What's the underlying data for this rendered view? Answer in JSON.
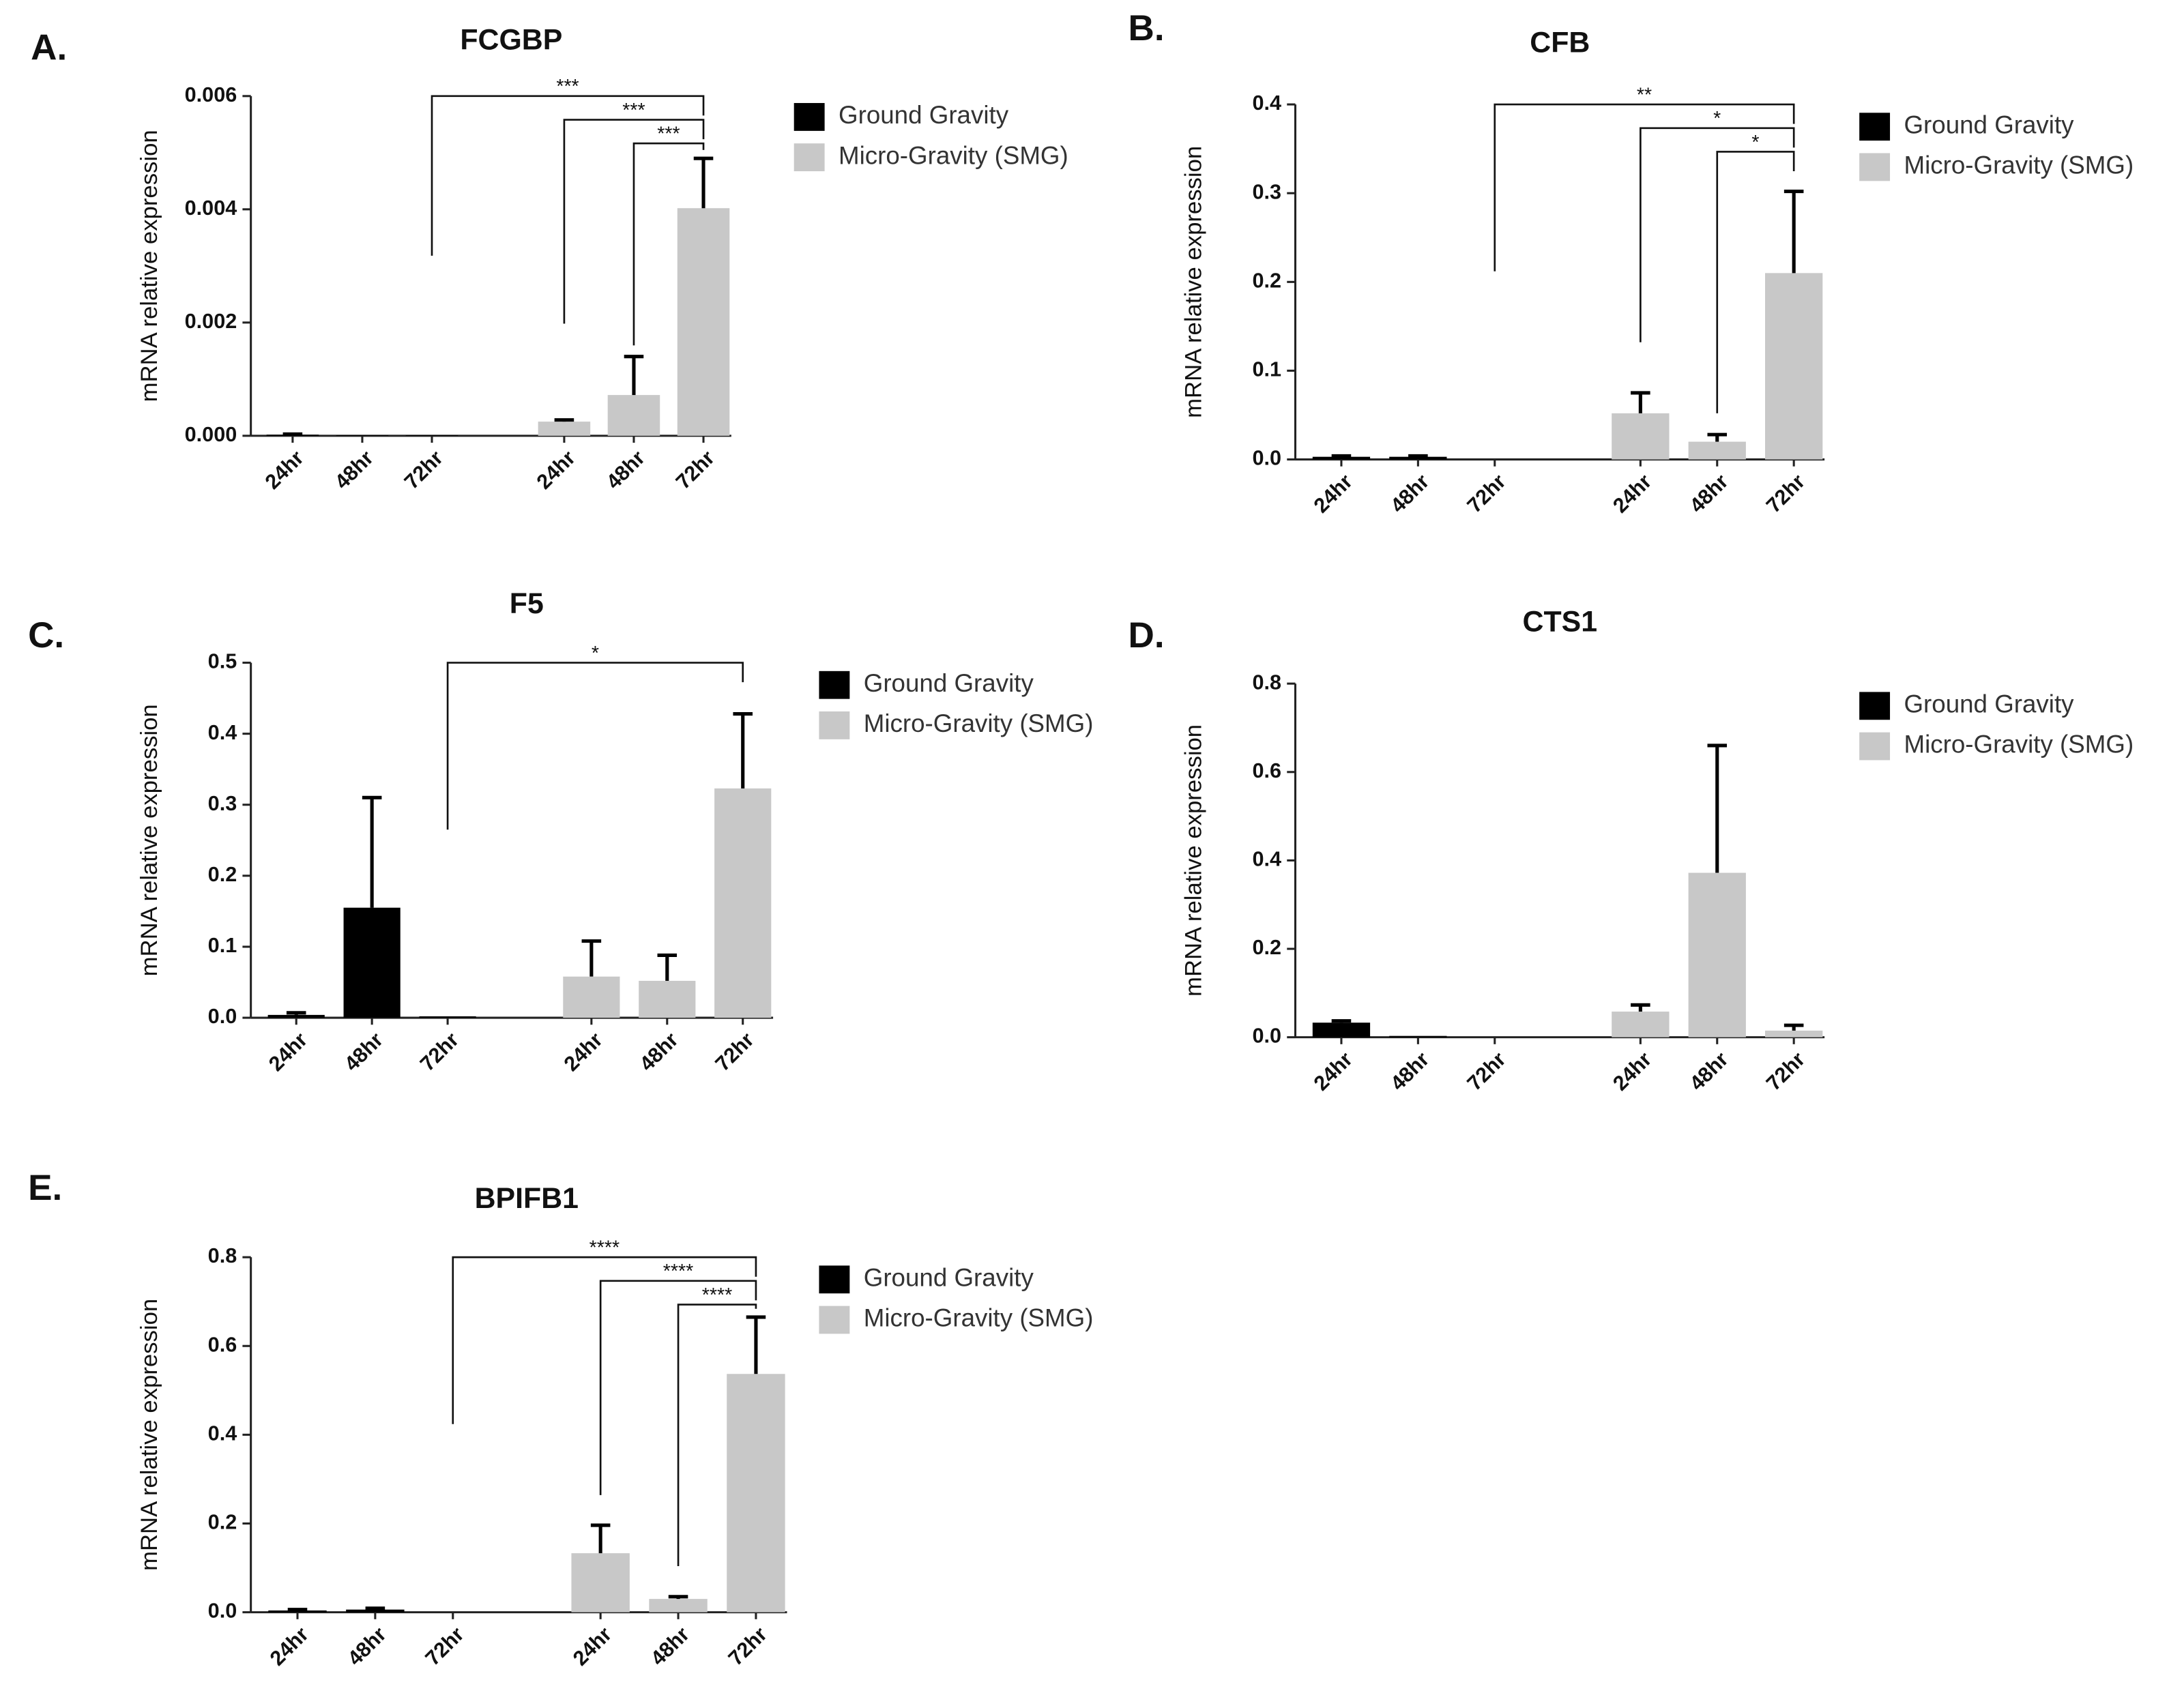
{
  "chart_data": [
    {
      "type": "bar",
      "panel": "A.",
      "title": "FCGBP",
      "ylabel": "mRNA relative expression",
      "categories": [
        "24hr",
        "48hr",
        "72hr",
        "24hr",
        "48hr",
        "72hr"
      ],
      "series": [
        {
          "name": "Ground Gravity",
          "color": "#000000",
          "values": [
            2e-05,
            1e-05,
            1e-05,
            null,
            null,
            null
          ],
          "errors": [
            1e-05,
            null,
            null,
            null,
            null,
            null
          ]
        },
        {
          "name": "Micro-Gravity (SMG)",
          "color": "#c8c8c8",
          "values": [
            null,
            null,
            null,
            0.00025,
            0.00072,
            0.00402
          ],
          "errors": [
            null,
            null,
            null,
            3e-05,
            0.00068,
            0.00088
          ]
        }
      ],
      "ylim": [
        0,
        0.006
      ],
      "yticks": [
        {
          "value": 0,
          "label": "0.000"
        },
        0.002,
        0.004,
        0.006
      ],
      "annotations": [
        {
          "text": "***",
          "from": 2,
          "to": 5
        },
        {
          "text": "***",
          "from": 3,
          "to": 5
        },
        {
          "text": "***",
          "from": 4,
          "to": 5
        }
      ]
    },
    {
      "type": "bar",
      "panel": "B.",
      "title": "CFB",
      "ylabel": "mRNA relative expression",
      "categories": [
        "24hr",
        "48hr",
        "72hr",
        "24hr",
        "48hr",
        "72hr"
      ],
      "series": [
        {
          "name": "Ground Gravity",
          "color": "#000000",
          "values": [
            0.003,
            0.003,
            0,
            null,
            null,
            null
          ],
          "errors": [
            0.001,
            0.001,
            null,
            null,
            null,
            null
          ]
        },
        {
          "name": "Micro-Gravity (SMG)",
          "color": "#c8c8c8",
          "values": [
            null,
            null,
            null,
            0.052,
            0.02,
            0.21
          ],
          "errors": [
            null,
            null,
            null,
            0.023,
            0.008,
            0.092
          ]
        }
      ],
      "ylim": [
        0,
        0.4
      ],
      "yticks": [
        {
          "value": 0,
          "label": "0.0"
        },
        0.1,
        0.2,
        0.3,
        0.4
      ],
      "annotations": [
        {
          "text": "**",
          "from": 2,
          "to": 5
        },
        {
          "text": "*",
          "from": 3,
          "to": 5
        },
        {
          "text": "*",
          "from": 4,
          "to": 5
        }
      ]
    },
    {
      "type": "bar",
      "panel": "C.",
      "title": "F5",
      "ylabel": "mRNA relative expression",
      "categories": [
        "24hr",
        "48hr",
        "72hr",
        "24hr",
        "48hr",
        "72hr"
      ],
      "series": [
        {
          "name": "Ground Gravity",
          "color": "#000000",
          "values": [
            0.004,
            0.155,
            0.002,
            null,
            null,
            null
          ],
          "errors": [
            0.003,
            0.155,
            null,
            null,
            null,
            null
          ]
        },
        {
          "name": "Micro-Gravity (SMG)",
          "color": "#c8c8c8",
          "values": [
            null,
            null,
            null,
            0.058,
            0.052,
            0.323
          ],
          "errors": [
            null,
            null,
            null,
            0.05,
            0.036,
            0.105
          ]
        }
      ],
      "ylim": [
        0,
        0.5
      ],
      "yticks": [
        {
          "value": 0,
          "label": "0.0"
        },
        0.1,
        0.2,
        0.3,
        0.4,
        0.5
      ],
      "annotations": [
        {
          "text": "*",
          "from": 2,
          "to": 5
        }
      ]
    },
    {
      "type": "bar",
      "panel": "D.",
      "title": "CTS1",
      "ylabel": "mRNA relative expression",
      "categories": [
        "24hr",
        "48hr",
        "72hr",
        "24hr",
        "48hr",
        "72hr"
      ],
      "series": [
        {
          "name": "Ground Gravity",
          "color": "#000000",
          "values": [
            0.033,
            0.003,
            0,
            null,
            null,
            null
          ],
          "errors": [
            0.004,
            null,
            null,
            null,
            null,
            null
          ]
        },
        {
          "name": "Micro-Gravity (SMG)",
          "color": "#c8c8c8",
          "values": [
            null,
            null,
            null,
            0.058,
            0.372,
            0.015
          ],
          "errors": [
            null,
            null,
            null,
            0.015,
            0.288,
            0.012
          ]
        }
      ],
      "ylim": [
        0,
        0.8
      ],
      "yticks": [
        {
          "value": 0,
          "label": "0.0"
        },
        0.2,
        0.4,
        0.6,
        0.8
      ],
      "annotations": []
    },
    {
      "type": "bar",
      "panel": "E.",
      "title": "BPIFB1",
      "ylabel": "mRNA relative expression",
      "categories": [
        "24hr",
        "48hr",
        "72hr",
        "24hr",
        "48hr",
        "72hr"
      ],
      "series": [
        {
          "name": "Ground Gravity",
          "color": "#000000",
          "values": [
            0.004,
            0.006,
            0,
            null,
            null,
            null
          ],
          "errors": [
            0.002,
            0.003,
            null,
            null,
            null,
            null
          ]
        },
        {
          "name": "Micro-Gravity (SMG)",
          "color": "#c8c8c8",
          "values": [
            null,
            null,
            null,
            0.133,
            0.03,
            0.537
          ],
          "errors": [
            null,
            null,
            null,
            0.063,
            0.005,
            0.128
          ]
        }
      ],
      "ylim": [
        0,
        0.8
      ],
      "yticks": [
        {
          "value": 0,
          "label": "0.0"
        },
        0.2,
        0.4,
        0.6,
        0.8
      ],
      "annotations": [
        {
          "text": "****",
          "from": 2,
          "to": 5
        },
        {
          "text": "****",
          "from": 3,
          "to": 5
        },
        {
          "text": "****",
          "from": 4,
          "to": 5
        }
      ]
    }
  ]
}
